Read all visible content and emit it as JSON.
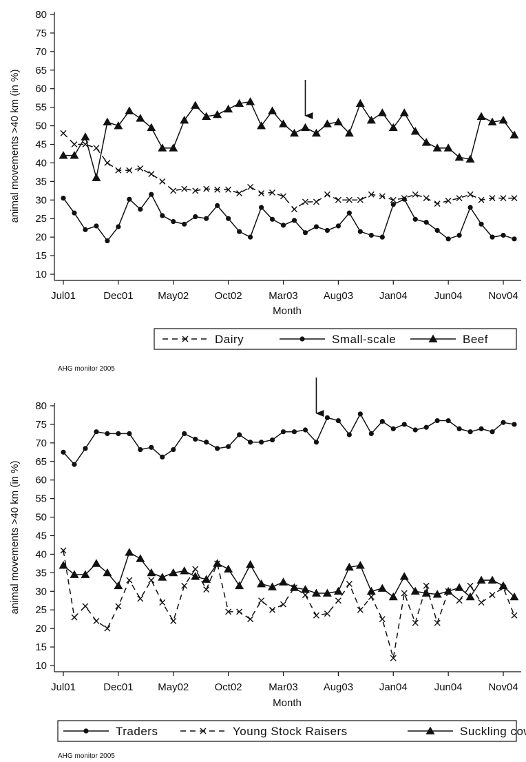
{
  "chart_data": [
    {
      "type": "line",
      "xlabel": "Month",
      "ylabel": "animal movements >40 km (in %)",
      "ylim": [
        10,
        80
      ],
      "yticks": [
        10,
        15,
        20,
        25,
        30,
        35,
        40,
        45,
        50,
        55,
        60,
        65,
        70,
        75,
        80
      ],
      "xtick_labels": [
        "Jul01",
        "Dec01",
        "May02",
        "Oct02",
        "Mar03",
        "Aug03",
        "Jan04",
        "Jun04",
        "Nov04"
      ],
      "xtick_indices": [
        0,
        5,
        10,
        15,
        20,
        25,
        30,
        35,
        40
      ],
      "arrow_index": 22,
      "legend_position": "bottom",
      "credit": "AHG monitor 2005",
      "series": [
        {
          "name": "Dairy",
          "style": "dashed",
          "marker": "x",
          "values": [
            48,
            45,
            45,
            44,
            40,
            38,
            38,
            38.5,
            37,
            35,
            32.5,
            33,
            32.5,
            33,
            32.8,
            32.8,
            31.8,
            33.5,
            31.8,
            32,
            31,
            27.5,
            29.5,
            29.5,
            31.5,
            30,
            30,
            30,
            31.5,
            31,
            30,
            30.5,
            31.5,
            30.5,
            29,
            29.8,
            30.5,
            31.5,
            30,
            30.5,
            30.5,
            30.5
          ]
        },
        {
          "name": "Small-scale",
          "style": "solid",
          "marker": "dot",
          "values": [
            30.5,
            26.5,
            22,
            23,
            19,
            22.8,
            30.2,
            27.5,
            31.5,
            25.8,
            24.2,
            23.5,
            25.5,
            25,
            28.5,
            25,
            21.5,
            20,
            28,
            24.8,
            23.2,
            24.5,
            21.2,
            22.8,
            21.8,
            23,
            26.5,
            21.5,
            20.5,
            20,
            28.8,
            30.2,
            24.8,
            24,
            21.8,
            19.5,
            20.5,
            28,
            23.5,
            20,
            20.5,
            19.5
          ]
        },
        {
          "name": "Beef",
          "style": "solid",
          "marker": "triangle",
          "values": [
            42,
            42,
            47,
            36,
            51,
            50,
            54,
            52,
            49.5,
            44,
            44,
            51.5,
            55.5,
            52.5,
            53,
            54.5,
            56,
            56.5,
            50,
            54,
            50.5,
            48,
            49.5,
            48,
            50.5,
            51,
            48,
            56,
            51.5,
            53.5,
            49.5,
            53.5,
            48.5,
            45.5,
            44,
            44,
            41.5,
            41,
            52.5,
            51,
            51.5,
            47.5
          ]
        }
      ]
    },
    {
      "type": "line",
      "xlabel": "Month",
      "ylabel": "animal movements >40 km (in %)",
      "ylim": [
        10,
        80
      ],
      "yticks": [
        10,
        15,
        20,
        25,
        30,
        35,
        40,
        45,
        50,
        55,
        60,
        65,
        70,
        75,
        80
      ],
      "xtick_labels": [
        "Jul01",
        "Dec01",
        "May02",
        "Oct02",
        "Mar03",
        "Aug03",
        "Jan04",
        "Jun04",
        "Nov04"
      ],
      "xtick_indices": [
        0,
        5,
        10,
        15,
        20,
        25,
        30,
        35,
        40
      ],
      "arrow_index": 23,
      "legend_position": "bottom",
      "credit": "AHG monitor 2005",
      "series": [
        {
          "name": "Traders",
          "style": "solid",
          "marker": "dot",
          "values": [
            67.5,
            64.2,
            68.5,
            73,
            72.5,
            72.5,
            72.5,
            68.2,
            68.8,
            66.2,
            68.2,
            72.5,
            71,
            70.2,
            68.5,
            69,
            72.2,
            70.2,
            70.2,
            70.8,
            73,
            73,
            73.5,
            70.2,
            76.8,
            76,
            72.2,
            77.8,
            72.5,
            75.8,
            73.8,
            75,
            73.5,
            74.2,
            76,
            76,
            73.8,
            73,
            73.8,
            73,
            75.5,
            75
          ]
        },
        {
          "name": "Young Stock Raisers",
          "style": "dashed",
          "marker": "x",
          "values": [
            41,
            23,
            26,
            22,
            20,
            26,
            33,
            28,
            33,
            27,
            22,
            31.5,
            36,
            30.5,
            37.5,
            24.5,
            24.5,
            22.5,
            27.5,
            25,
            26.5,
            31,
            29,
            23.5,
            24,
            27.5,
            32,
            25,
            28.5,
            22.5,
            12,
            29.5,
            21.5,
            31.5,
            21.5,
            30,
            27.5,
            31.5,
            27,
            29,
            31,
            23.5
          ]
        },
        {
          "name": "Suckling cows",
          "style": "solid",
          "marker": "triangle",
          "values": [
            37,
            34.5,
            34.5,
            37.5,
            35,
            31.5,
            40.5,
            38.8,
            35,
            33.8,
            35,
            35.5,
            34,
            33.2,
            37.5,
            36,
            31.5,
            37.2,
            32,
            31.2,
            32.5,
            31,
            30.5,
            29.5,
            29.5,
            30,
            36.5,
            37,
            30,
            30.8,
            28.5,
            34,
            30,
            29.5,
            29.2,
            30,
            31,
            28.5,
            33,
            33,
            31.5,
            28.5
          ]
        }
      ]
    }
  ]
}
